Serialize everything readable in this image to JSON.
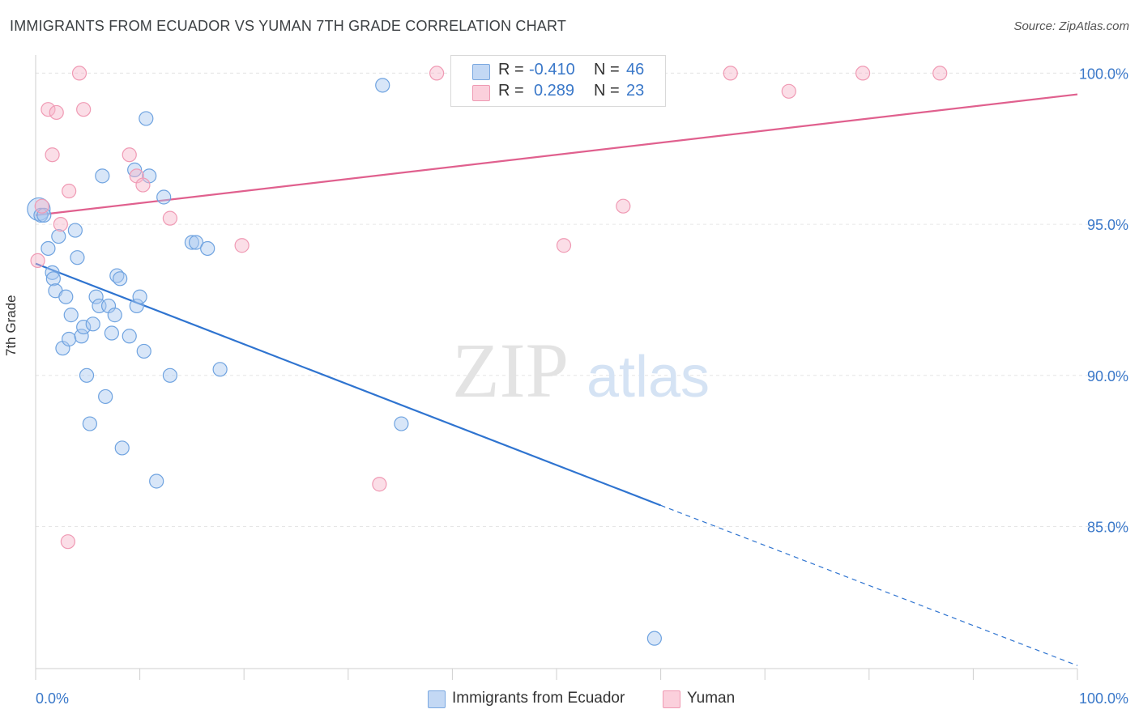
{
  "header": {
    "title": "IMMIGRANTS FROM ECUADOR VS YUMAN 7TH GRADE CORRELATION CHART",
    "source": "Source: ZipAtlas.com"
  },
  "watermark": {
    "part1": "ZIP",
    "part2": "atlas"
  },
  "legend": {
    "rows": [
      {
        "r_label": "R =",
        "r_value": "-0.410",
        "n_label": "N =",
        "n_value": "46",
        "color": "#a9c8f0"
      },
      {
        "r_label": "R =",
        "r_value": "0.289",
        "n_label": "N =",
        "n_value": "23",
        "color": "#f7b6c9"
      }
    ]
  },
  "chart_data": {
    "type": "scatter",
    "title": "IMMIGRANTS FROM ECUADOR VS YUMAN 7TH GRADE CORRELATION CHART",
    "xlabel": "",
    "ylabel": "7th Grade",
    "xlim": [
      0,
      100
    ],
    "ylim": [
      80.3,
      100.6
    ],
    "x_tick_labels": [
      "0.0%",
      "100.0%"
    ],
    "y_ticks": [
      85,
      90,
      95,
      100
    ],
    "y_tick_labels": [
      "85.0%",
      "90.0%",
      "95.0%",
      "100.0%"
    ],
    "grid": true,
    "series": [
      {
        "name": "Immigrants from Ecuador",
        "color": "#6fa3e0",
        "fill": "#a9c8f0",
        "line_color": "#2f74d0",
        "trend": {
          "x0": 0,
          "y0": 93.7,
          "x1": 60,
          "y1": 85.7,
          "dashed_to_x": 100,
          "dashed_to_y": 80.4
        },
        "points": [
          {
            "x": 0.3,
            "y": 95.5,
            "big": true
          },
          {
            "x": 0.5,
            "y": 95.3
          },
          {
            "x": 0.8,
            "y": 95.3
          },
          {
            "x": 1.2,
            "y": 94.2
          },
          {
            "x": 1.6,
            "y": 93.4
          },
          {
            "x": 1.7,
            "y": 93.2
          },
          {
            "x": 1.9,
            "y": 92.8
          },
          {
            "x": 2.2,
            "y": 94.6
          },
          {
            "x": 2.6,
            "y": 90.9
          },
          {
            "x": 2.9,
            "y": 92.6
          },
          {
            "x": 3.2,
            "y": 91.2
          },
          {
            "x": 3.4,
            "y": 92.0
          },
          {
            "x": 3.8,
            "y": 94.8
          },
          {
            "x": 4.0,
            "y": 93.9
          },
          {
            "x": 4.4,
            "y": 91.3
          },
          {
            "x": 4.6,
            "y": 91.6
          },
          {
            "x": 4.9,
            "y": 90.0
          },
          {
            "x": 5.2,
            "y": 88.4
          },
          {
            "x": 5.5,
            "y": 91.7
          },
          {
            "x": 5.8,
            "y": 92.6
          },
          {
            "x": 6.1,
            "y": 92.3
          },
          {
            "x": 6.4,
            "y": 96.6
          },
          {
            "x": 6.7,
            "y": 89.3
          },
          {
            "x": 7.0,
            "y": 92.3
          },
          {
            "x": 7.3,
            "y": 91.4
          },
          {
            "x": 7.6,
            "y": 92.0
          },
          {
            "x": 7.8,
            "y": 93.3
          },
          {
            "x": 8.1,
            "y": 93.2
          },
          {
            "x": 8.3,
            "y": 87.6
          },
          {
            "x": 9.0,
            "y": 91.3
          },
          {
            "x": 9.5,
            "y": 96.8
          },
          {
            "x": 9.7,
            "y": 92.3
          },
          {
            "x": 10.0,
            "y": 92.6
          },
          {
            "x": 10.4,
            "y": 90.8
          },
          {
            "x": 10.6,
            "y": 98.5
          },
          {
            "x": 10.9,
            "y": 96.6
          },
          {
            "x": 11.6,
            "y": 86.5
          },
          {
            "x": 12.3,
            "y": 95.9
          },
          {
            "x": 12.9,
            "y": 90.0
          },
          {
            "x": 15.0,
            "y": 94.4
          },
          {
            "x": 15.4,
            "y": 94.4
          },
          {
            "x": 16.5,
            "y": 94.2
          },
          {
            "x": 17.7,
            "y": 90.2
          },
          {
            "x": 33.3,
            "y": 99.6
          },
          {
            "x": 35.1,
            "y": 88.4
          },
          {
            "x": 59.4,
            "y": 81.3
          }
        ]
      },
      {
        "name": "Yuman",
        "color": "#f09ab4",
        "fill": "#f7b6c9",
        "line_color": "#e0608e",
        "trend": {
          "x0": 0,
          "y0": 95.3,
          "x1": 100,
          "y1": 99.3
        },
        "points": [
          {
            "x": 0.2,
            "y": 93.8
          },
          {
            "x": 0.6,
            "y": 95.6
          },
          {
            "x": 1.2,
            "y": 98.8
          },
          {
            "x": 1.6,
            "y": 97.3
          },
          {
            "x": 2.0,
            "y": 98.7
          },
          {
            "x": 2.4,
            "y": 95.0
          },
          {
            "x": 3.2,
            "y": 96.1
          },
          {
            "x": 3.1,
            "y": 84.5
          },
          {
            "x": 4.2,
            "y": 100.0
          },
          {
            "x": 4.6,
            "y": 98.8
          },
          {
            "x": 9.0,
            "y": 97.3
          },
          {
            "x": 9.7,
            "y": 96.6
          },
          {
            "x": 10.3,
            "y": 96.3
          },
          {
            "x": 12.9,
            "y": 95.2
          },
          {
            "x": 19.8,
            "y": 94.3
          },
          {
            "x": 33.0,
            "y": 86.4
          },
          {
            "x": 38.5,
            "y": 100.0
          },
          {
            "x": 50.7,
            "y": 94.3
          },
          {
            "x": 56.4,
            "y": 95.6
          },
          {
            "x": 66.7,
            "y": 100.0
          },
          {
            "x": 72.3,
            "y": 99.4
          },
          {
            "x": 79.4,
            "y": 100.0
          },
          {
            "x": 86.8,
            "y": 100.0
          }
        ]
      }
    ]
  }
}
